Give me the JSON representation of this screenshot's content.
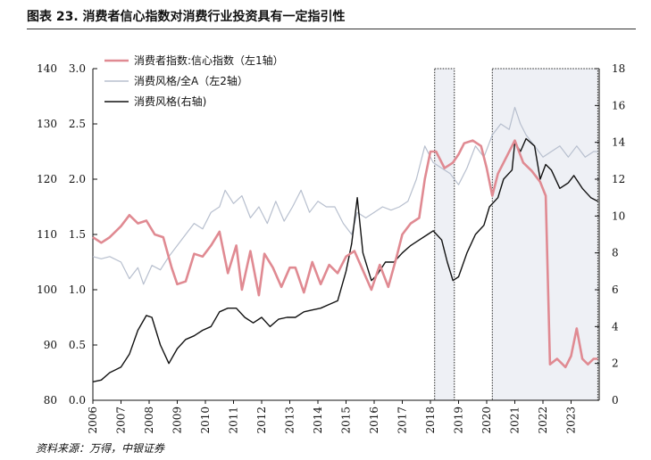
{
  "figure": {
    "title": "图表 23. 消费者信心指数对消费行业投资具有一定指引性",
    "source": "资料来源：万得，中银证券"
  },
  "chart_data": {
    "type": "line",
    "xlabel": "",
    "x_ticks": [
      "2006",
      "2007",
      "2008",
      "2009",
      "2010",
      "2011",
      "2012",
      "2013",
      "2014",
      "2015",
      "2016",
      "2017",
      "2018",
      "2019",
      "2020",
      "2021",
      "2022",
      "2023"
    ],
    "x_range": [
      2006.0,
      2024.0
    ],
    "axes": {
      "left1": {
        "range": [
          80,
          140
        ],
        "ticks": [
          "80",
          "90",
          "100",
          "110",
          "120",
          "130",
          "140"
        ],
        "for_series": "消费者指数:信心指数（左1轴）"
      },
      "left2": {
        "range": [
          0.0,
          3.0
        ],
        "ticks": [
          "0.0",
          "0.5",
          "1.0",
          "1.5",
          "2.0",
          "2.5",
          "3.0"
        ],
        "for_series": "消费风格/全A（左2轴）"
      },
      "right": {
        "range": [
          0,
          18
        ],
        "ticks": [
          "0",
          "2",
          "4",
          "6",
          "8",
          "10",
          "12",
          "14",
          "16",
          "18"
        ],
        "for_series": "消费风格(右轴)"
      }
    },
    "shaded_regions": [
      [
        2018.15,
        2018.85
      ],
      [
        2020.2,
        2023.95
      ]
    ],
    "legend": [
      "消费者指数:信心指数（左1轴）",
      "消费风格/全A（左2轴）",
      "消费风格(右轴)"
    ],
    "series": [
      {
        "name": "消费者指数:信心指数（左1轴）",
        "axis": "left1",
        "color": "#e08a92",
        "x": [
          2006.0,
          2006.3,
          2006.6,
          2007.0,
          2007.3,
          2007.6,
          2007.9,
          2008.2,
          2008.5,
          2008.8,
          2009.0,
          2009.3,
          2009.6,
          2009.9,
          2010.2,
          2010.5,
          2010.8,
          2011.1,
          2011.3,
          2011.6,
          2011.9,
          2012.1,
          2012.4,
          2012.7,
          2013.0,
          2013.2,
          2013.5,
          2013.8,
          2014.1,
          2014.4,
          2014.7,
          2015.0,
          2015.3,
          2015.6,
          2015.9,
          2016.2,
          2016.5,
          2016.8,
          2017.0,
          2017.3,
          2017.6,
          2017.8,
          2018.0,
          2018.2,
          2018.5,
          2018.8,
          2019.0,
          2019.2,
          2019.5,
          2019.8,
          2020.0,
          2020.2,
          2020.4,
          2020.7,
          2021.0,
          2021.3,
          2021.6,
          2021.9,
          2022.1,
          2022.25,
          2022.5,
          2022.8,
          2023.0,
          2023.2,
          2023.4,
          2023.6,
          2023.8,
          2023.95
        ],
        "values": [
          109.5,
          108.5,
          109.5,
          111.5,
          113.5,
          112.0,
          112.5,
          110.0,
          109.5,
          104.0,
          101.0,
          101.5,
          106.5,
          106.0,
          108.0,
          110.5,
          103.0,
          108.0,
          100.0,
          107.0,
          99.0,
          106.5,
          104.0,
          100.5,
          104.0,
          104.0,
          99.5,
          105.0,
          101.0,
          104.5,
          103.0,
          106.0,
          107.0,
          103.5,
          100.0,
          104.5,
          100.5,
          106.0,
          110.0,
          112.0,
          113.0,
          120.0,
          125.0,
          125.0,
          122.0,
          123.0,
          124.5,
          126.5,
          127.0,
          126.0,
          122.0,
          117.0,
          121.0,
          124.0,
          127.0,
          123.0,
          121.5,
          119.5,
          117.0,
          86.5,
          87.5,
          86.0,
          88.0,
          93.0,
          87.5,
          86.5,
          87.5,
          87.5
        ]
      },
      {
        "name": "消费风格/全A（左2轴）",
        "axis": "left2",
        "color": "#b7bfce",
        "x": [
          2006.0,
          2006.3,
          2006.6,
          2007.0,
          2007.3,
          2007.6,
          2007.8,
          2008.1,
          2008.4,
          2008.7,
          2009.0,
          2009.3,
          2009.6,
          2009.9,
          2010.2,
          2010.5,
          2010.7,
          2011.0,
          2011.3,
          2011.6,
          2011.9,
          2012.2,
          2012.5,
          2012.8,
          2013.1,
          2013.4,
          2013.7,
          2014.0,
          2014.3,
          2014.6,
          2014.9,
          2015.2,
          2015.4,
          2015.7,
          2016.0,
          2016.3,
          2016.6,
          2016.9,
          2017.2,
          2017.5,
          2017.8,
          2018.1,
          2018.4,
          2018.7,
          2019.0,
          2019.3,
          2019.6,
          2019.9,
          2020.2,
          2020.5,
          2020.8,
          2021.0,
          2021.2,
          2021.4,
          2021.7,
          2022.0,
          2022.3,
          2022.6,
          2022.9,
          2023.2,
          2023.5,
          2023.8,
          2023.95
        ],
        "values": [
          1.3,
          1.28,
          1.3,
          1.25,
          1.1,
          1.2,
          1.05,
          1.22,
          1.18,
          1.3,
          1.4,
          1.5,
          1.6,
          1.55,
          1.7,
          1.75,
          1.9,
          1.78,
          1.85,
          1.65,
          1.75,
          1.6,
          1.8,
          1.62,
          1.75,
          1.9,
          1.7,
          1.8,
          1.75,
          1.75,
          1.6,
          1.5,
          1.7,
          1.65,
          1.7,
          1.75,
          1.72,
          1.75,
          1.8,
          2.0,
          2.3,
          2.15,
          2.1,
          2.05,
          1.95,
          2.1,
          2.3,
          2.2,
          2.4,
          2.5,
          2.45,
          2.65,
          2.5,
          2.4,
          2.3,
          2.2,
          2.25,
          2.3,
          2.2,
          2.3,
          2.2,
          2.25,
          2.25
        ]
      },
      {
        "name": "消费风格(右轴)",
        "axis": "right",
        "color": "#111111",
        "x": [
          2006.0,
          2006.3,
          2006.6,
          2007.0,
          2007.3,
          2007.6,
          2007.9,
          2008.1,
          2008.4,
          2008.7,
          2009.0,
          2009.3,
          2009.6,
          2009.9,
          2010.2,
          2010.5,
          2010.8,
          2011.1,
          2011.4,
          2011.7,
          2012.0,
          2012.3,
          2012.6,
          2012.9,
          2013.2,
          2013.5,
          2013.8,
          2014.1,
          2014.4,
          2014.7,
          2015.0,
          2015.2,
          2015.4,
          2015.6,
          2015.9,
          2016.1,
          2016.4,
          2016.7,
          2017.0,
          2017.3,
          2017.6,
          2017.9,
          2018.1,
          2018.4,
          2018.6,
          2018.8,
          2019.0,
          2019.3,
          2019.6,
          2019.9,
          2020.1,
          2020.4,
          2020.6,
          2020.9,
          2021.0,
          2021.2,
          2021.4,
          2021.7,
          2021.9,
          2022.1,
          2022.3,
          2022.6,
          2022.9,
          2023.1,
          2023.4,
          2023.7,
          2023.95
        ],
        "values": [
          1.0,
          1.1,
          1.5,
          1.8,
          2.5,
          3.8,
          4.6,
          4.5,
          3.0,
          2.0,
          2.8,
          3.3,
          3.5,
          3.8,
          4.0,
          4.8,
          5.0,
          5.0,
          4.5,
          4.2,
          4.5,
          4.0,
          4.4,
          4.5,
          4.5,
          4.8,
          4.9,
          5.0,
          5.2,
          5.4,
          7.0,
          8.5,
          11.0,
          8.0,
          6.5,
          6.8,
          7.5,
          7.5,
          8.0,
          8.4,
          8.7,
          9.0,
          9.2,
          8.7,
          7.5,
          6.5,
          6.7,
          8.0,
          9.0,
          9.5,
          10.5,
          11.0,
          12.0,
          12.5,
          14.0,
          13.5,
          14.2,
          13.8,
          12.0,
          12.8,
          12.5,
          11.5,
          11.8,
          12.2,
          11.5,
          11.0,
          10.8
        ]
      }
    ]
  }
}
